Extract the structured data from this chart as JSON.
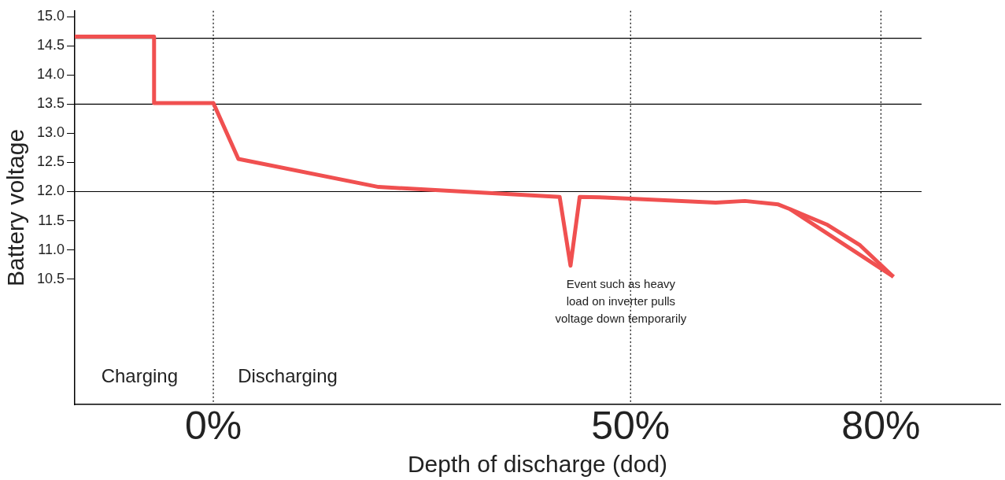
{
  "chart_data": {
    "type": "line",
    "xlabel": "Depth of discharge (dod)",
    "ylabel": "Battery voltage",
    "xlim": [
      -16.6,
      94.3
    ],
    "ylim": [
      8.35,
      15.1
    ],
    "xticks": [
      {
        "value": 0,
        "label": "0%"
      },
      {
        "value": 50,
        "label": "50%"
      },
      {
        "value": 80,
        "label": "80%"
      }
    ],
    "yticks": [
      {
        "value": 10.5,
        "label": "10.5"
      },
      {
        "value": 11,
        "label": "11.0"
      },
      {
        "value": 11.5,
        "label": "11.5"
      },
      {
        "value": 12,
        "label": "12.0"
      },
      {
        "value": 12.5,
        "label": "12.5"
      },
      {
        "value": 13,
        "label": "13.0"
      },
      {
        "value": 13.5,
        "label": "13.5"
      },
      {
        "value": 14,
        "label": "14.0"
      },
      {
        "value": 14.5,
        "label": "14.5"
      },
      {
        "value": 15,
        "label": "15.0"
      }
    ],
    "grid": false,
    "legend": false,
    "marker": "none",
    "line_style": "solid",
    "series": [
      {
        "color": "#f05050",
        "x": [
          -16.6,
          -7.1,
          -7.1,
          0,
          3.0,
          19.8,
          41.5,
          42.8,
          43.9,
          46.9,
          60.2,
          63.7,
          67.7,
          69.1,
          81.5
        ],
        "values": [
          14.66,
          14.66,
          13.52,
          13.52,
          12.56,
          12.08,
          11.91,
          10.73,
          11.91,
          11.9,
          11.81,
          11.84,
          11.78,
          11.7,
          10.54
        ]
      },
      {
        "color": "#f05050",
        "x": [
          69.1,
          73.6,
          77.5,
          81.5
        ],
        "values": [
          11.7,
          11.43,
          11.08,
          10.54
        ]
      }
    ],
    "ref_lines": [
      {
        "axis": "y",
        "value": 14.63,
        "color": "#000000",
        "line_style": "solid"
      },
      {
        "axis": "y",
        "value": 13.5,
        "color": "#000000",
        "line_style": "solid"
      },
      {
        "axis": "y",
        "value": 12,
        "color": "#000000",
        "line_style": "solid"
      },
      {
        "axis": "x",
        "value": 0,
        "color": "#000000",
        "line_style": "dotted"
      },
      {
        "axis": "x",
        "value": 50,
        "color": "#000000",
        "line_style": "dotted"
      },
      {
        "axis": "x",
        "value": 80,
        "color": "#000000",
        "line_style": "dotted"
      }
    ],
    "annotations": [
      "Charging",
      "Discharging",
      "Event such as heavy\nload on inverter pulls\nvoltage down temporarily"
    ]
  }
}
